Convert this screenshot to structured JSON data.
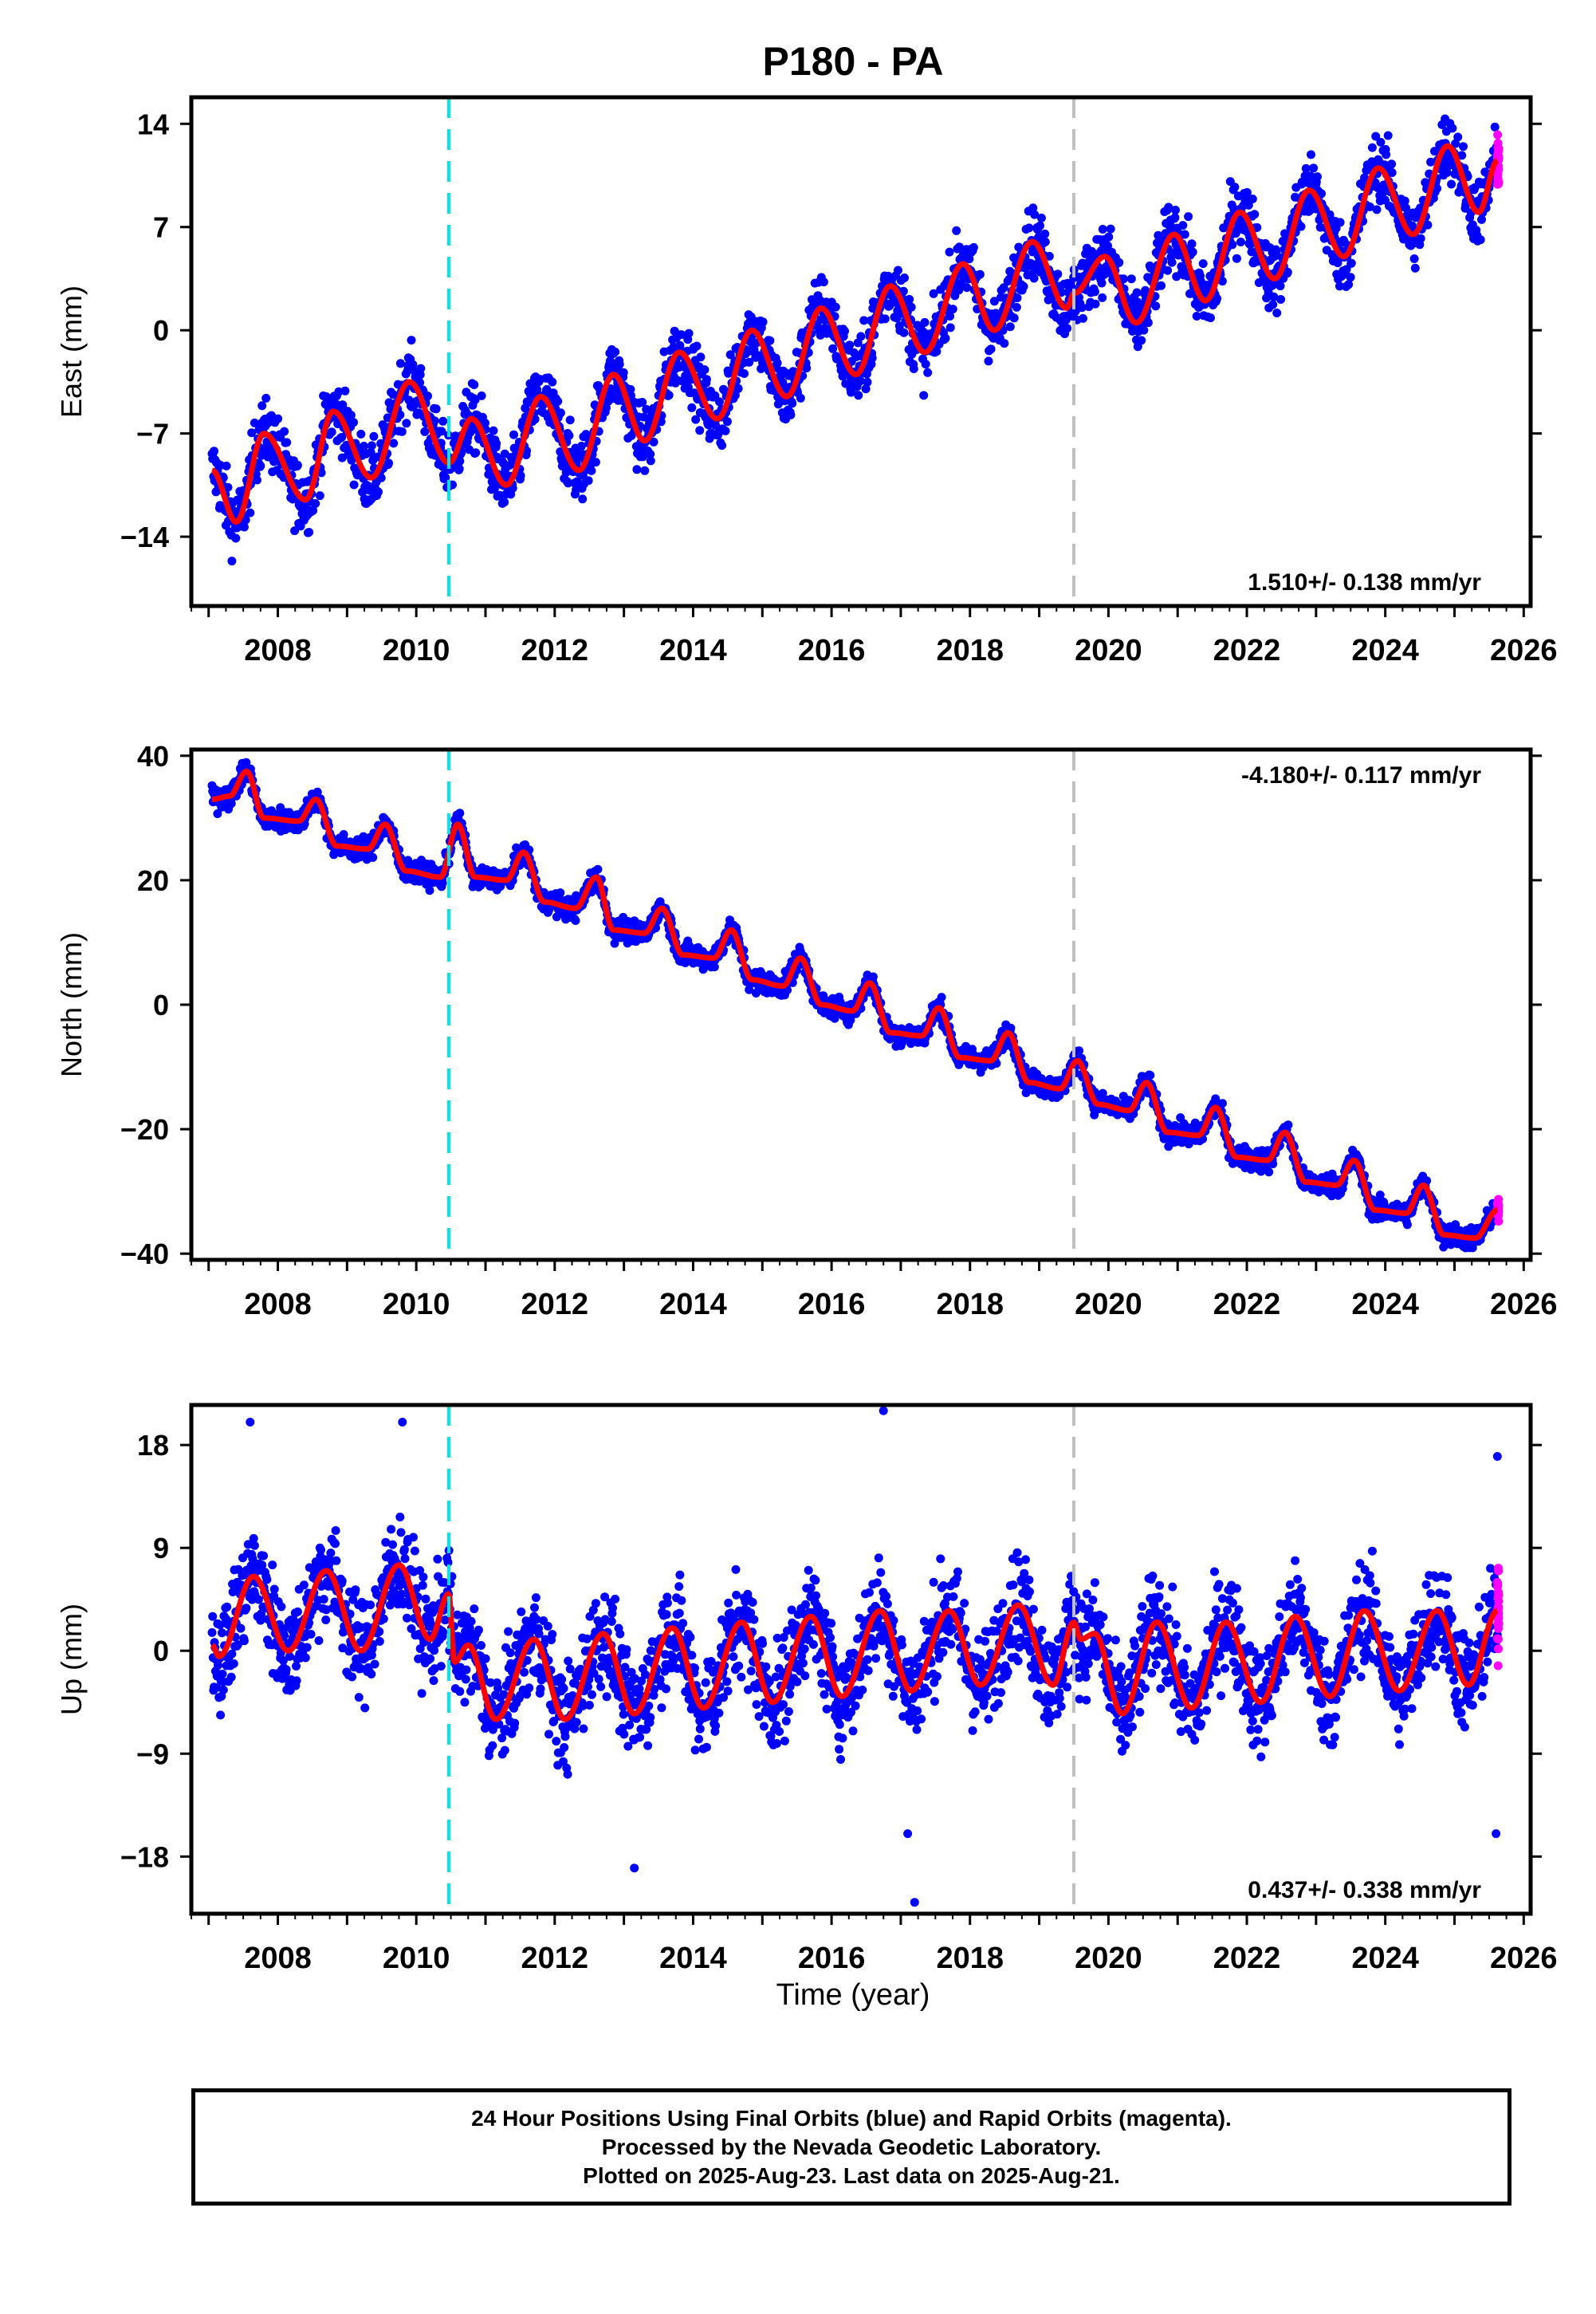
{
  "title": "P180 - PA",
  "xlabel": "Time (year)",
  "footer": {
    "line1": "24 Hour Positions Using Final Orbits (blue) and Rapid Orbits (magenta).",
    "line2": "Processed by the Nevada Geodetic Laboratory.",
    "line3": "Plotted on 2025-Aug-23. Last data on 2025-Aug-21."
  },
  "colors": {
    "final_points": "#0000ff",
    "rapid_points": "#ff00ff",
    "model": "#ff0000",
    "equipment_change": "#00e5ee",
    "gray_line": "#c0c0c0"
  },
  "chart_data": [
    {
      "type": "scatter",
      "component": "East",
      "ylabel": "East (mm)",
      "ylim": [
        -18.7,
        15.8
      ],
      "yticks": [
        14,
        7,
        0,
        -7,
        -14
      ],
      "xlim": [
        2006.75,
        2026.1
      ],
      "xticks": [
        2008,
        2010,
        2012,
        2014,
        2016,
        2018,
        2020,
        2022,
        2024,
        2026
      ],
      "rate_label": "1.510+/- 0.138 mm/yr",
      "rate_position": "bottom-right",
      "vertical_lines": [
        {
          "x": 2010.47,
          "style": "cyan-dashed"
        },
        {
          "x": 2019.5,
          "style": "gray-dashed"
        }
      ],
      "data_span": [
        2007.05,
        2025.62
      ],
      "rapid_span": [
        2025.5,
        2025.64
      ],
      "model_knots": [
        {
          "x": 2007.05,
          "y": -9.5
        },
        {
          "x": 2007.4,
          "y": -13.0
        },
        {
          "x": 2007.8,
          "y": -7.0
        },
        {
          "x": 2008.4,
          "y": -11.5
        },
        {
          "x": 2008.8,
          "y": -5.5
        },
        {
          "x": 2009.35,
          "y": -10.0
        },
        {
          "x": 2009.9,
          "y": -3.5
        },
        {
          "x": 2010.47,
          "y": -9.0
        },
        {
          "x": 2010.8,
          "y": -6.0
        },
        {
          "x": 2011.3,
          "y": -10.5
        },
        {
          "x": 2011.8,
          "y": -4.5
        },
        {
          "x": 2012.35,
          "y": -9.5
        },
        {
          "x": 2012.85,
          "y": -3.0
        },
        {
          "x": 2013.3,
          "y": -7.5
        },
        {
          "x": 2013.8,
          "y": -1.5
        },
        {
          "x": 2014.35,
          "y": -6.0
        },
        {
          "x": 2014.85,
          "y": 0.0
        },
        {
          "x": 2015.35,
          "y": -4.5
        },
        {
          "x": 2015.85,
          "y": 1.5
        },
        {
          "x": 2016.35,
          "y": -3.0
        },
        {
          "x": 2016.85,
          "y": 3.0
        },
        {
          "x": 2017.35,
          "y": -1.5
        },
        {
          "x": 2017.9,
          "y": 4.5
        },
        {
          "x": 2018.35,
          "y": 0.0
        },
        {
          "x": 2018.9,
          "y": 6.0
        },
        {
          "x": 2019.4,
          "y": 1.5
        },
        {
          "x": 2019.5,
          "y": 2.5
        },
        {
          "x": 2019.95,
          "y": 5.0
        },
        {
          "x": 2020.4,
          "y": 0.5
        },
        {
          "x": 2020.95,
          "y": 6.5
        },
        {
          "x": 2021.4,
          "y": 2.0
        },
        {
          "x": 2021.9,
          "y": 8.0
        },
        {
          "x": 2022.4,
          "y": 3.5
        },
        {
          "x": 2022.9,
          "y": 9.5
        },
        {
          "x": 2023.4,
          "y": 5.0
        },
        {
          "x": 2023.9,
          "y": 11.0
        },
        {
          "x": 2024.4,
          "y": 6.5
        },
        {
          "x": 2024.9,
          "y": 12.5
        },
        {
          "x": 2025.35,
          "y": 8.0
        },
        {
          "x": 2025.62,
          "y": 11.5
        }
      ]
    },
    {
      "type": "scatter",
      "component": "North",
      "ylabel": "North (mm)",
      "ylim": [
        -41,
        41
      ],
      "yticks": [
        40,
        20,
        0,
        -20,
        -40
      ],
      "xlim": [
        2006.75,
        2026.1
      ],
      "xticks": [
        2008,
        2010,
        2012,
        2014,
        2016,
        2018,
        2020,
        2022,
        2024,
        2026
      ],
      "rate_label": "-4.180+/- 0.117 mm/yr",
      "rate_position": "top-right",
      "vertical_lines": [
        {
          "x": 2010.47,
          "style": "cyan-dashed"
        },
        {
          "x": 2019.5,
          "style": "gray-dashed"
        }
      ],
      "data_span": [
        2007.05,
        2025.62
      ],
      "rapid_span": [
        2025.5,
        2025.64
      ],
      "model_knots": [
        {
          "x": 2007.05,
          "y": 33.0
        },
        {
          "x": 2007.3,
          "y": 33.5
        },
        {
          "x": 2007.55,
          "y": 37.5
        },
        {
          "x": 2007.8,
          "y": 30.0
        },
        {
          "x": 2008.3,
          "y": 29.5
        },
        {
          "x": 2008.55,
          "y": 33.0
        },
        {
          "x": 2008.85,
          "y": 25.5
        },
        {
          "x": 2009.3,
          "y": 25.0
        },
        {
          "x": 2009.55,
          "y": 29.0
        },
        {
          "x": 2009.85,
          "y": 21.5
        },
        {
          "x": 2010.35,
          "y": 20.5
        },
        {
          "x": 2010.6,
          "y": 29.0
        },
        {
          "x": 2010.85,
          "y": 20.5
        },
        {
          "x": 2011.3,
          "y": 20.0
        },
        {
          "x": 2011.55,
          "y": 24.5
        },
        {
          "x": 2011.85,
          "y": 16.5
        },
        {
          "x": 2012.3,
          "y": 15.5
        },
        {
          "x": 2012.6,
          "y": 20.5
        },
        {
          "x": 2012.85,
          "y": 12.0
        },
        {
          "x": 2013.3,
          "y": 11.5
        },
        {
          "x": 2013.55,
          "y": 15.5
        },
        {
          "x": 2013.85,
          "y": 8.0
        },
        {
          "x": 2014.3,
          "y": 7.5
        },
        {
          "x": 2014.55,
          "y": 12.0
        },
        {
          "x": 2014.85,
          "y": 4.0
        },
        {
          "x": 2015.3,
          "y": 3.0
        },
        {
          "x": 2015.55,
          "y": 7.5
        },
        {
          "x": 2015.85,
          "y": 0.0
        },
        {
          "x": 2016.3,
          "y": -1.0
        },
        {
          "x": 2016.55,
          "y": 3.5
        },
        {
          "x": 2016.85,
          "y": -4.5
        },
        {
          "x": 2017.3,
          "y": -5.0
        },
        {
          "x": 2017.55,
          "y": -0.5
        },
        {
          "x": 2017.85,
          "y": -8.5
        },
        {
          "x": 2018.3,
          "y": -9.0
        },
        {
          "x": 2018.55,
          "y": -4.5
        },
        {
          "x": 2018.85,
          "y": -12.5
        },
        {
          "x": 2019.3,
          "y": -13.5
        },
        {
          "x": 2019.55,
          "y": -9.0
        },
        {
          "x": 2019.85,
          "y": -16.0
        },
        {
          "x": 2020.3,
          "y": -17.0
        },
        {
          "x": 2020.55,
          "y": -12.5
        },
        {
          "x": 2020.85,
          "y": -20.5
        },
        {
          "x": 2021.3,
          "y": -21.0
        },
        {
          "x": 2021.55,
          "y": -16.5
        },
        {
          "x": 2021.85,
          "y": -24.5
        },
        {
          "x": 2022.3,
          "y": -25.0
        },
        {
          "x": 2022.55,
          "y": -20.5
        },
        {
          "x": 2022.85,
          "y": -28.5
        },
        {
          "x": 2023.3,
          "y": -29.0
        },
        {
          "x": 2023.55,
          "y": -25.0
        },
        {
          "x": 2023.85,
          "y": -33.0
        },
        {
          "x": 2024.3,
          "y": -33.5
        },
        {
          "x": 2024.55,
          "y": -29.0
        },
        {
          "x": 2024.85,
          "y": -37.0
        },
        {
          "x": 2025.3,
          "y": -37.5
        },
        {
          "x": 2025.62,
          "y": -33.0
        }
      ]
    },
    {
      "type": "scatter",
      "component": "Up",
      "ylabel": "Up (mm)",
      "ylim": [
        -23,
        21.5
      ],
      "yticks": [
        18,
        9,
        0,
        -9,
        -18
      ],
      "xlim": [
        2006.75,
        2026.1
      ],
      "xticks": [
        2008,
        2010,
        2012,
        2014,
        2016,
        2018,
        2020,
        2022,
        2024,
        2026
      ],
      "rate_label": "0.437+/- 0.338 mm/yr",
      "rate_position": "bottom-right",
      "vertical_lines": [
        {
          "x": 2010.47,
          "style": "cyan-dashed"
        },
        {
          "x": 2019.5,
          "style": "gray-dashed"
        }
      ],
      "data_span": [
        2007.05,
        2025.62
      ],
      "rapid_span": [
        2025.5,
        2025.64
      ],
      "model_knots": [
        {
          "x": 2007.05,
          "y": 0.5
        },
        {
          "x": 2007.15,
          "y": -0.5
        },
        {
          "x": 2007.65,
          "y": 6.5
        },
        {
          "x": 2008.15,
          "y": 0.0
        },
        {
          "x": 2008.7,
          "y": 7.0
        },
        {
          "x": 2009.2,
          "y": 0.0
        },
        {
          "x": 2009.75,
          "y": 7.5
        },
        {
          "x": 2010.2,
          "y": 1.0
        },
        {
          "x": 2010.47,
          "y": 5.0
        },
        {
          "x": 2010.55,
          "y": -1.0
        },
        {
          "x": 2010.75,
          "y": 0.5
        },
        {
          "x": 2011.15,
          "y": -6.0
        },
        {
          "x": 2011.7,
          "y": 1.0
        },
        {
          "x": 2012.15,
          "y": -6.0
        },
        {
          "x": 2012.7,
          "y": 1.5
        },
        {
          "x": 2013.15,
          "y": -5.5
        },
        {
          "x": 2013.7,
          "y": 2.0
        },
        {
          "x": 2014.15,
          "y": -5.0
        },
        {
          "x": 2014.7,
          "y": 2.5
        },
        {
          "x": 2015.15,
          "y": -4.5
        },
        {
          "x": 2015.7,
          "y": 3.0
        },
        {
          "x": 2016.15,
          "y": -4.0
        },
        {
          "x": 2016.7,
          "y": 3.5
        },
        {
          "x": 2017.15,
          "y": -3.5
        },
        {
          "x": 2017.7,
          "y": 3.5
        },
        {
          "x": 2018.15,
          "y": -3.0
        },
        {
          "x": 2018.7,
          "y": 4.0
        },
        {
          "x": 2019.2,
          "y": -3.0
        },
        {
          "x": 2019.5,
          "y": 2.5
        },
        {
          "x": 2019.6,
          "y": 1.0
        },
        {
          "x": 2019.8,
          "y": 1.5
        },
        {
          "x": 2020.2,
          "y": -5.5
        },
        {
          "x": 2020.7,
          "y": 2.5
        },
        {
          "x": 2021.2,
          "y": -5.0
        },
        {
          "x": 2021.7,
          "y": 2.5
        },
        {
          "x": 2022.2,
          "y": -4.5
        },
        {
          "x": 2022.7,
          "y": 3.0
        },
        {
          "x": 2023.2,
          "y": -4.0
        },
        {
          "x": 2023.7,
          "y": 3.5
        },
        {
          "x": 2024.2,
          "y": -3.5
        },
        {
          "x": 2024.75,
          "y": 3.5
        },
        {
          "x": 2025.2,
          "y": -3.0
        },
        {
          "x": 2025.62,
          "y": 3.5
        }
      ],
      "outliers": [
        {
          "x": 2007.6,
          "y": 20
        },
        {
          "x": 2009.8,
          "y": 20
        },
        {
          "x": 2016.75,
          "y": 21
        },
        {
          "x": 2017.2,
          "y": -22
        },
        {
          "x": 2013.15,
          "y": -19
        },
        {
          "x": 2017.1,
          "y": -16
        },
        {
          "x": 2025.6,
          "y": -16
        },
        {
          "x": 2025.62,
          "y": 17
        }
      ]
    }
  ]
}
